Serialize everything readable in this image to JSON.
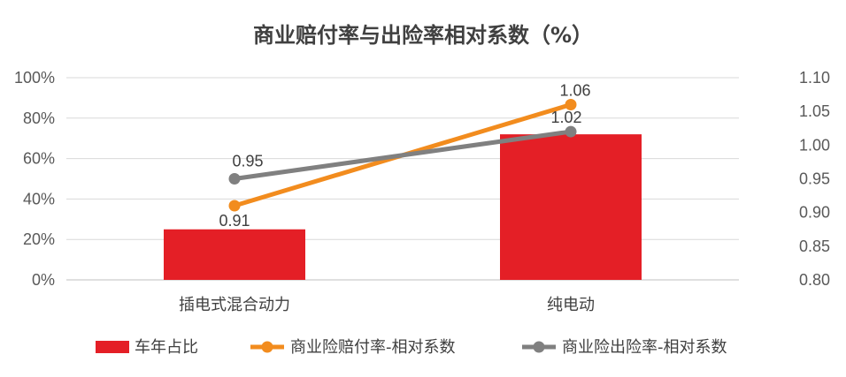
{
  "chart_data": {
    "type": "bar+line",
    "title": "商业赔付率与出险率相对系数（%）",
    "categories": [
      "插电式混合动力",
      "纯电动"
    ],
    "left_axis": {
      "ticks": [
        "0%",
        "20%",
        "40%",
        "60%",
        "80%",
        "100%"
      ],
      "ylim": [
        0,
        100
      ]
    },
    "right_axis": {
      "ticks": [
        "0.80",
        "0.85",
        "0.90",
        "0.95",
        "1.00",
        "1.05",
        "1.10"
      ],
      "ylim": [
        0.8,
        1.1
      ]
    },
    "bar_series": {
      "name": "车年占比",
      "axis": "left",
      "values": [
        25,
        72
      ],
      "color": "#e41f26"
    },
    "line_series": [
      {
        "name": "商业险赔付率-相对系数",
        "axis": "right",
        "values": [
          0.91,
          1.06
        ],
        "labels": [
          "0.91",
          "1.06"
        ],
        "color": "#f28c1e"
      },
      {
        "name": "商业险出险率-相对系数",
        "axis": "right",
        "values": [
          0.95,
          1.02
        ],
        "labels": [
          "0.95",
          "1.02"
        ],
        "color": "#808080"
      }
    ],
    "grid": true,
    "legend_position": "bottom"
  }
}
